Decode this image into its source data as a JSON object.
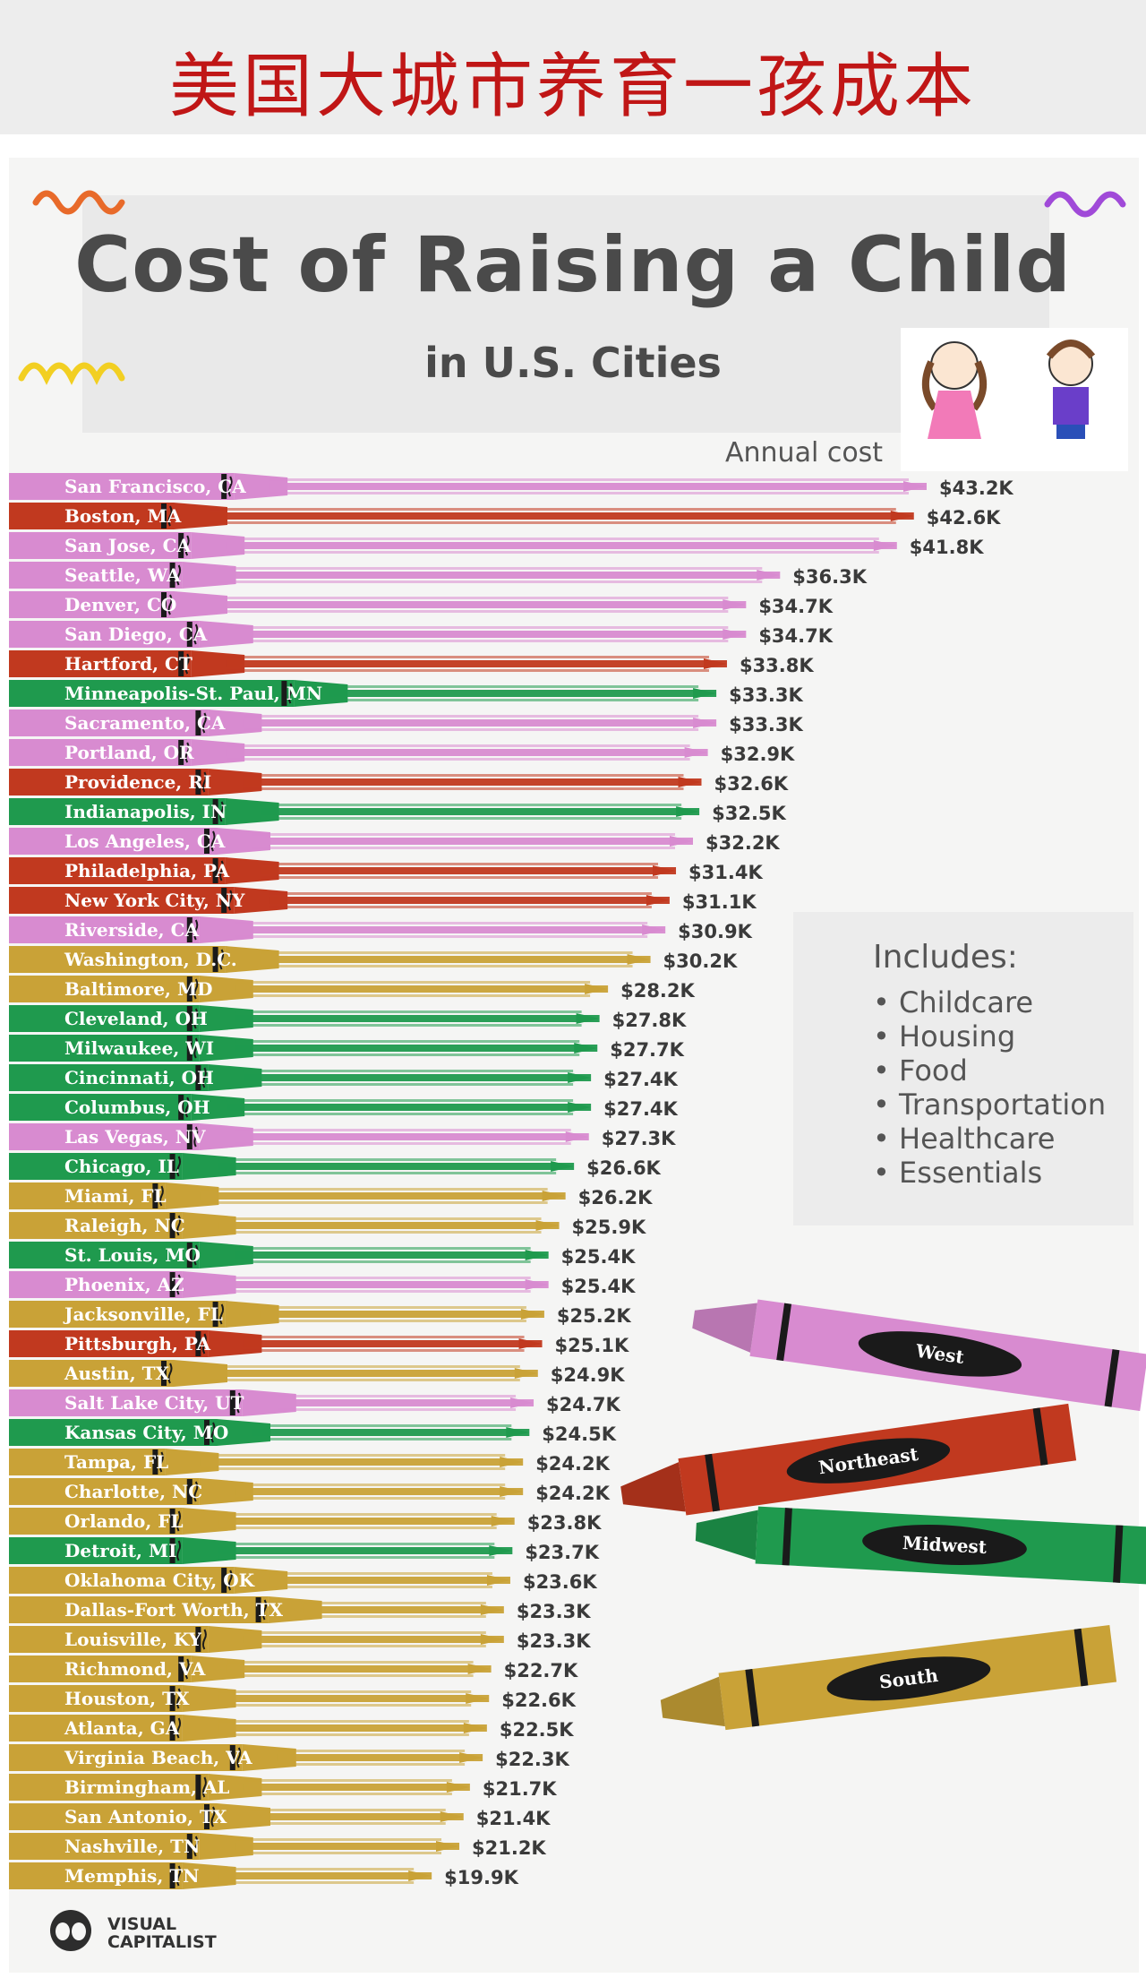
{
  "banner": {
    "cn_title": "美国大城市养育一孩成本"
  },
  "header": {
    "title": "Cost of Raising a Child",
    "subtitle": "in U.S. Cities"
  },
  "annual_label": "Annual cost",
  "includes": {
    "title": "Includes:",
    "items": [
      "Childcare",
      "Housing",
      "Food",
      "Transportation",
      "Healthcare",
      "Essentials"
    ]
  },
  "legend": [
    {
      "region": "West",
      "color": "#d88bd0"
    },
    {
      "region": "Northeast",
      "color": "#c1391f"
    },
    {
      "region": "Midwest",
      "color": "#1f9a4e"
    },
    {
      "region": "South",
      "color": "#c9a237"
    }
  ],
  "logo": {
    "line1": "VISUAL",
    "line2": "CAPITALIST"
  },
  "chart_data": {
    "type": "bar",
    "ylabel": "Annual cost",
    "unit": "$K",
    "categories": [
      "San Francisco, CA",
      "Boston, MA",
      "San Jose, CA",
      "Seattle, WA",
      "Denver, CO",
      "San Diego, CA",
      "Hartford, CT",
      "Minneapolis-St. Paul, MN",
      "Sacramento, CA",
      "Portland, OR",
      "Providence, RI",
      "Indianapolis, IN",
      "Los Angeles, CA",
      "Philadelphia, PA",
      "New York City, NY",
      "Riverside, CA",
      "Washington, D.C.",
      "Baltimore, MD",
      "Cleveland, OH",
      "Milwaukee, WI",
      "Cincinnati, OH",
      "Columbus, OH",
      "Las Vegas, NV",
      "Chicago, IL",
      "Miami, FL",
      "Raleigh, NC",
      "St. Louis, MO",
      "Phoenix, AZ",
      "Jacksonville, FL",
      "Pittsburgh, PA",
      "Austin, TX",
      "Salt Lake City, UT",
      "Kansas City, MO",
      "Tampa, FL",
      "Charlotte, NC",
      "Orlando, FL",
      "Detroit, MI",
      "Oklahoma City, OK",
      "Dallas-Fort Worth, TX",
      "Louisville, KY",
      "Richmond, VA",
      "Houston, TX",
      "Atlanta, GA",
      "Virginia Beach, VA",
      "Birmingham, AL",
      "San Antonio, TX",
      "Nashville, TN",
      "Memphis, TN"
    ],
    "values": [
      43.2,
      42.6,
      41.8,
      36.3,
      34.7,
      34.7,
      33.8,
      33.3,
      33.3,
      32.9,
      32.6,
      32.5,
      32.2,
      31.4,
      31.1,
      30.9,
      30.2,
      28.2,
      27.8,
      27.7,
      27.4,
      27.4,
      27.3,
      26.6,
      26.2,
      25.9,
      25.4,
      25.4,
      25.2,
      25.1,
      24.9,
      24.7,
      24.5,
      24.2,
      24.2,
      23.8,
      23.7,
      23.6,
      23.3,
      23.3,
      22.7,
      22.6,
      22.5,
      22.3,
      21.7,
      21.4,
      21.2,
      19.9
    ],
    "value_labels": [
      "$43.2K",
      "$42.6K",
      "$41.8K",
      "$36.3K",
      "$34.7K",
      "$34.7K",
      "$33.8K",
      "$33.3K",
      "$33.3K",
      "$32.9K",
      "$32.6K",
      "$32.5K",
      "$32.2K",
      "$31.4K",
      "$31.1K",
      "$30.9K",
      "$30.2K",
      "$28.2K",
      "$27.8K",
      "$27.7K",
      "$27.4K",
      "$27.4K",
      "$27.3K",
      "$26.6K",
      "$26.2K",
      "$25.9K",
      "$25.4K",
      "$25.4K",
      "$25.2K",
      "$25.1K",
      "$24.9K",
      "$24.7K",
      "$24.5K",
      "$24.2K",
      "$24.2K",
      "$23.8K",
      "$23.7K",
      "$23.6K",
      "$23.3K",
      "$23.3K",
      "$22.7K",
      "$22.6K",
      "$22.5K",
      "$22.3K",
      "$21.7K",
      "$21.4K",
      "$21.2K",
      "$19.9K"
    ],
    "regions": [
      "West",
      "Northeast",
      "West",
      "West",
      "West",
      "West",
      "Northeast",
      "Midwest",
      "West",
      "West",
      "Northeast",
      "Midwest",
      "West",
      "Northeast",
      "Northeast",
      "West",
      "South",
      "South",
      "Midwest",
      "Midwest",
      "Midwest",
      "Midwest",
      "West",
      "Midwest",
      "South",
      "South",
      "Midwest",
      "West",
      "South",
      "Northeast",
      "South",
      "West",
      "Midwest",
      "South",
      "South",
      "South",
      "Midwest",
      "South",
      "South",
      "South",
      "South",
      "South",
      "South",
      "South",
      "South",
      "South",
      "South",
      "South"
    ]
  }
}
